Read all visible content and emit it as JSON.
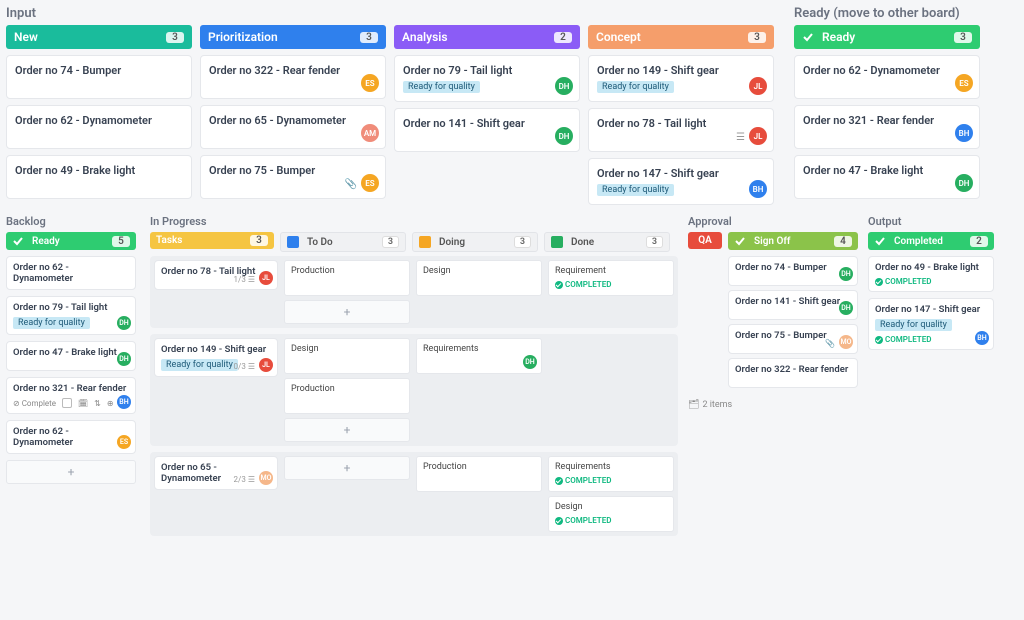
{
  "sections": {
    "input": {
      "title": "Input"
    },
    "ready_move": {
      "title": "Ready (move to other board)"
    },
    "backlog": {
      "title": "Backlog"
    },
    "inprogress": {
      "title": "In Progress"
    },
    "approval": {
      "title": "Approval"
    },
    "output": {
      "title": "Output"
    }
  },
  "columns": {
    "new": {
      "label": "New",
      "count": "3",
      "color": "#1abc9c"
    },
    "prio": {
      "label": "Prioritization",
      "count": "3",
      "color": "#2f80ed"
    },
    "anal": {
      "label": "Analysis",
      "count": "2",
      "color": "#8b5cf6"
    },
    "conc": {
      "label": "Concept",
      "count": "3",
      "color": "#f59e6b"
    },
    "ready": {
      "label": "Ready",
      "count": "3",
      "color": "#2ecc71"
    },
    "backlog_ready": {
      "label": "Ready",
      "count": "5",
      "color": "#2ecc71"
    },
    "tasks": {
      "label": "Tasks",
      "count": "3",
      "color": "#f5c542"
    },
    "todo": {
      "label": "To Do",
      "count": "3"
    },
    "doing": {
      "label": "Doing",
      "count": "3"
    },
    "done": {
      "label": "Done",
      "count": "3"
    },
    "qa": {
      "label": "QA",
      "count": "",
      "color": "#e74c3c"
    },
    "signoff": {
      "label": "Sign Off",
      "count": "4",
      "color": "#8bc34a"
    },
    "completed": {
      "label": "Completed",
      "count": "2",
      "color": "#2ecc71"
    }
  },
  "avatars": {
    "ES": "#f5a623",
    "AM": "#f08c7a",
    "DH": "#27ae60",
    "JL": "#e74c3c",
    "BH": "#2f80ed",
    "MO": "#f5b78a"
  },
  "tags": {
    "ready_quality": "Ready for quality"
  },
  "status": {
    "completed": "COMPLETED"
  },
  "misc": {
    "items2": "2 items",
    "complete": "Complete",
    "prog13": "1/3",
    "prog03": "0/3",
    "prog23": "2/3"
  },
  "cards": {
    "new": [
      {
        "title": "Order no 74 - Bumper"
      },
      {
        "title": "Order no 62 - Dynamometer"
      },
      {
        "title": "Order no 49 - Brake light"
      }
    ],
    "prio": [
      {
        "title": "Order no 322 - Rear fender",
        "avatar": "ES"
      },
      {
        "title": "Order no 65 - Dynamometer",
        "avatar": "AM"
      },
      {
        "title": "Order no 75 - Bumper",
        "avatar": "ES",
        "attach": true
      }
    ],
    "anal": [
      {
        "title": "Order no 79 - Tail light",
        "tag": true,
        "avatar": "DH"
      },
      {
        "title": "Order no 141 - Shift gear",
        "avatar": "DH"
      }
    ],
    "conc": [
      {
        "title": "Order no 149 - Shift gear",
        "tag": true,
        "avatar": "JL"
      },
      {
        "title": "Order no 78 - Tail light",
        "avatar": "JL",
        "desc": true
      },
      {
        "title": "Order no 147 - Shift gear",
        "tag": true,
        "avatar": "BH"
      }
    ],
    "ready": [
      {
        "title": "Order no 62 - Dynamometer",
        "avatar": "ES"
      },
      {
        "title": "Order no 321 - Rear fender",
        "avatar": "BH"
      },
      {
        "title": "Order no 47 - Brake light",
        "avatar": "DH"
      }
    ],
    "backlog": [
      {
        "title": "Order no 62 - Dynamometer"
      },
      {
        "title": "Order no 79 - Tail light",
        "tag": true,
        "avatar": "DH"
      },
      {
        "title": "Order no 47 - Brake light",
        "avatar": "DH"
      },
      {
        "title": "Order no 321 - Rear fender",
        "avatar": "BH",
        "toolbar": true
      },
      {
        "title": "Order no 62 - Dynamometer",
        "avatar": "ES"
      }
    ],
    "tasks": [
      {
        "title": "Order no 78 - Tail light",
        "avatar": "JL",
        "prog": "prog13"
      },
      {
        "title": "Order no 149 - Shift gear",
        "avatar": "JL",
        "tag": true,
        "prog": "prog03"
      },
      {
        "title": "Order no 65 - Dynamometer",
        "avatar": "MO",
        "prog": "prog23"
      }
    ],
    "lanes": [
      {
        "todo": [
          {
            "title": "Production"
          }
        ],
        "doing": [
          {
            "title": "Design"
          }
        ],
        "done": [
          {
            "title": "Requirement",
            "completed": true
          }
        ],
        "add": true
      },
      {
        "todo": [
          {
            "title": "Design"
          },
          {
            "title": "Production"
          }
        ],
        "doing": [
          {
            "title": "Requirements",
            "avatar": "DH"
          }
        ],
        "done": [],
        "add": true
      },
      {
        "todo": [],
        "doing": [
          {
            "title": "Production"
          }
        ],
        "done": [
          {
            "title": "Requirements",
            "completed": true
          },
          {
            "title": "Design",
            "completed": true
          }
        ],
        "add_top": true
      }
    ],
    "signoff": [
      {
        "title": "Order no 74 - Bumper",
        "avatar": "DH"
      },
      {
        "title": "Order no 141 - Shift gear",
        "avatar": "DH"
      },
      {
        "title": "Order no 75 - Bumper",
        "avatar": "MO",
        "attach": true
      },
      {
        "title": "Order no 322 - Rear fender"
      }
    ],
    "completed": [
      {
        "title": "Order no 49 - Brake light",
        "completed": true
      },
      {
        "title": "Order no 147 - Shift gear",
        "tag": true,
        "completed": true,
        "avatar": "BH"
      }
    ]
  }
}
